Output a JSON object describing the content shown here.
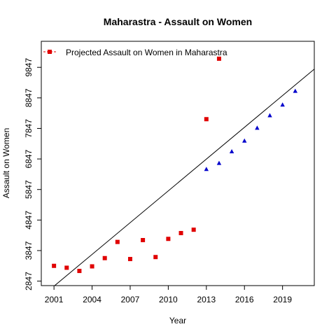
{
  "chart_data": {
    "type": "scatter",
    "title": "Maharastra  -  Assault on Women",
    "xlabel": "Year",
    "ylabel": "Assault on Women",
    "xlim": [
      2000.0,
      2021.5
    ],
    "ylim": [
      2700,
      10700
    ],
    "x_ticks": [
      2001,
      2004,
      2007,
      2010,
      2013,
      2016,
      2019
    ],
    "y_ticks": [
      2847,
      3847,
      4847,
      5847,
      6847,
      7847,
      8847,
      9847
    ],
    "legend": {
      "position": "top-left",
      "label": "Projected  Assault on Women  in  Maharastra"
    },
    "series": [
      {
        "name": "Projected  Assault on Women  in  Maharastra",
        "marker": "square",
        "color": "#e00000",
        "x": [
          2001,
          2002,
          2003,
          2004,
          2005,
          2006,
          2007,
          2008,
          2009,
          2010,
          2011,
          2012,
          2013,
          2014
        ],
        "y": [
          3347,
          3285,
          3180,
          3330,
          3600,
          4130,
          3570,
          4190,
          3635,
          4230,
          4420,
          4530,
          8150,
          10130
        ]
      },
      {
        "marker": "triangle",
        "color": "#0000cc",
        "x": [
          2013,
          2014,
          2015,
          2016,
          2017,
          2018,
          2019,
          2020
        ],
        "y": [
          6510,
          6710,
          7090,
          7440,
          7860,
          8270,
          8620,
          9070
        ]
      }
    ],
    "trend_line": {
      "color": "#000000",
      "x": [
        2000,
        2021.5
      ],
      "y": [
        2335,
        9790
      ]
    }
  }
}
